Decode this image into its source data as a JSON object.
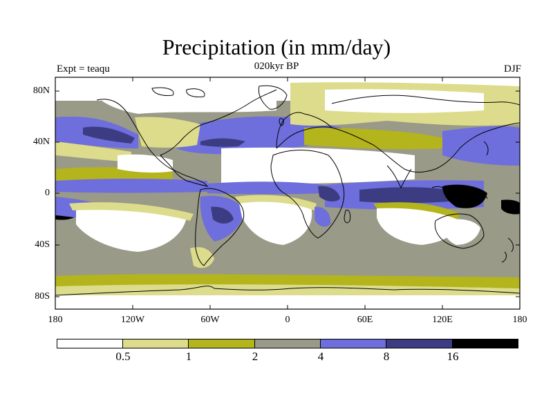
{
  "title": "Precipitation (in mm/day)",
  "expt_label": "Expt = teaqu",
  "period_label": "020kyr BP",
  "season_label": "DJF",
  "lat_labels": [
    "80N",
    "40N",
    "0",
    "40S",
    "80S"
  ],
  "lon_labels": [
    "180",
    "120W",
    "60W",
    "0",
    "60E",
    "120E",
    "180"
  ],
  "legend": {
    "levels": [
      "0.5",
      "1",
      "2",
      "4",
      "8",
      "16"
    ],
    "colors": [
      "#ffffff",
      "#dcdc8c",
      "#b4b41c",
      "#9a9a88",
      "#6e6edc",
      "#3c3c82",
      "#000000"
    ]
  },
  "colors": {
    "coast": "#000000"
  }
}
